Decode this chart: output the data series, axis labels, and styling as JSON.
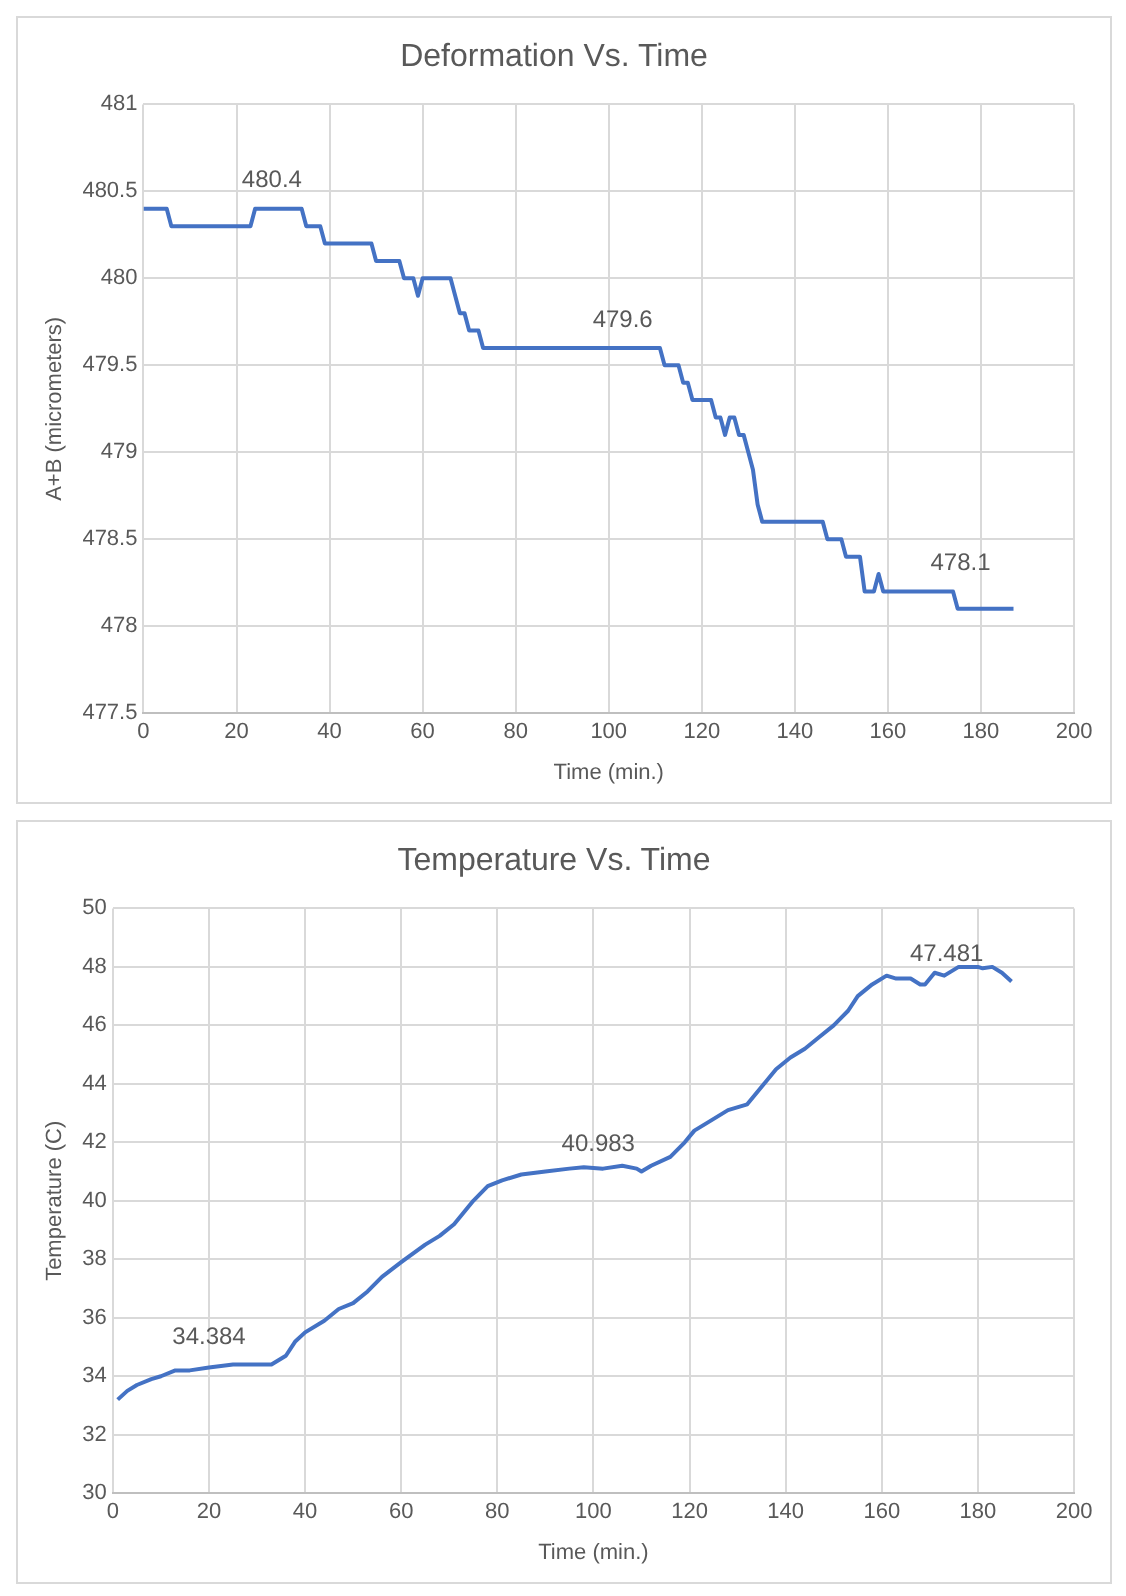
{
  "chart_data": [
    {
      "type": "line",
      "title": "Deformation Vs. Time",
      "xlabel": "Time (min.)",
      "ylabel": "A+B (micrometers)",
      "xlim": [
        0,
        200
      ],
      "xticks": [
        0,
        20,
        40,
        60,
        80,
        100,
        120,
        140,
        160,
        180,
        200
      ],
      "ylim": [
        477.5,
        481
      ],
      "yticks": [
        477.5,
        478,
        478.5,
        479,
        479.5,
        480,
        480.5,
        481
      ],
      "grid": true,
      "marker": "none",
      "line_style": "solid",
      "series": [
        {
          "color": "#4472c4",
          "x": [
            0,
            5,
            6,
            23,
            24,
            34,
            35,
            38,
            39,
            49,
            50,
            55,
            56,
            58,
            59,
            60,
            66,
            67,
            68,
            69,
            70,
            72,
            73,
            111,
            112,
            115,
            116,
            117,
            118,
            122,
            123,
            124,
            125,
            126,
            127,
            128,
            129,
            130,
            131,
            132,
            133,
            146,
            147,
            150,
            151,
            154,
            155,
            157,
            158,
            159,
            174,
            175,
            187
          ],
          "values": [
            480.4,
            480.4,
            480.3,
            480.3,
            480.4,
            480.4,
            480.3,
            480.3,
            480.2,
            480.2,
            480.1,
            480.1,
            480.0,
            480.0,
            479.9,
            480.0,
            480.0,
            479.9,
            479.8,
            479.8,
            479.7,
            479.7,
            479.6,
            479.6,
            479.5,
            479.5,
            479.4,
            479.4,
            479.3,
            479.3,
            479.2,
            479.2,
            479.1,
            479.2,
            479.2,
            479.1,
            479.1,
            479.0,
            478.9,
            478.7,
            478.6,
            478.6,
            478.5,
            478.5,
            478.4,
            478.4,
            478.2,
            478.2,
            478.3,
            478.2,
            478.2,
            478.1,
            478.1
          ]
        }
      ],
      "annotations": [
        {
          "text": "480.4",
          "x": 27.6,
          "y": 480.4
        },
        {
          "text": "479.6",
          "x": 103,
          "y": 479.6
        },
        {
          "text": "478.1",
          "x": 175.6,
          "y": 478.2
        }
      ]
    },
    {
      "type": "line",
      "title": "Temperature Vs. Time",
      "xlabel": "Time (min.)",
      "ylabel": "Temperature (C)",
      "xlim": [
        0,
        200
      ],
      "xticks": [
        0,
        20,
        40,
        60,
        80,
        100,
        120,
        140,
        160,
        180,
        200
      ],
      "ylim": [
        30,
        50
      ],
      "yticks": [
        30,
        32,
        34,
        36,
        38,
        40,
        42,
        44,
        46,
        48,
        50
      ],
      "grid": true,
      "marker": "none",
      "line_style": "solid",
      "series": [
        {
          "color": "#4472c4",
          "x": [
            1,
            3,
            5,
            8,
            10,
            13,
            16,
            20,
            25,
            30,
            33,
            36,
            38,
            40,
            44,
            47,
            50,
            53,
            56,
            60,
            65,
            68,
            71,
            73,
            75,
            78,
            81,
            85,
            90,
            95,
            98,
            102,
            106,
            109,
            110,
            112,
            116,
            119,
            121,
            124,
            128,
            132,
            135,
            138,
            141,
            144,
            147,
            150,
            153,
            155,
            158,
            161,
            163,
            166,
            168,
            169,
            171,
            173,
            176,
            180,
            181,
            183,
            185,
            187
          ],
          "values": [
            33.2,
            33.5,
            33.7,
            33.9,
            34.0,
            34.2,
            34.2,
            34.3,
            34.4,
            34.4,
            34.4,
            34.7,
            35.2,
            35.5,
            35.9,
            36.3,
            36.5,
            36.9,
            37.4,
            37.9,
            38.5,
            38.8,
            39.2,
            39.6,
            40.0,
            40.5,
            40.7,
            40.9,
            41.0,
            41.1,
            41.15,
            41.1,
            41.2,
            41.1,
            41.0,
            41.2,
            41.5,
            42.0,
            42.4,
            42.7,
            43.1,
            43.3,
            43.9,
            44.5,
            44.9,
            45.2,
            45.6,
            46.0,
            46.5,
            47.0,
            47.4,
            47.7,
            47.6,
            47.6,
            47.4,
            47.4,
            47.8,
            47.7,
            48.0,
            48.0,
            47.95,
            48.0,
            47.8,
            47.5
          ]
        }
      ],
      "annotations": [
        {
          "text": "34.384",
          "x": 20,
          "y": 34.384
        },
        {
          "text": "40.983",
          "x": 101,
          "y": 40.983
        },
        {
          "text": "47.481",
          "x": 173.5,
          "y": 47.481
        }
      ]
    }
  ]
}
